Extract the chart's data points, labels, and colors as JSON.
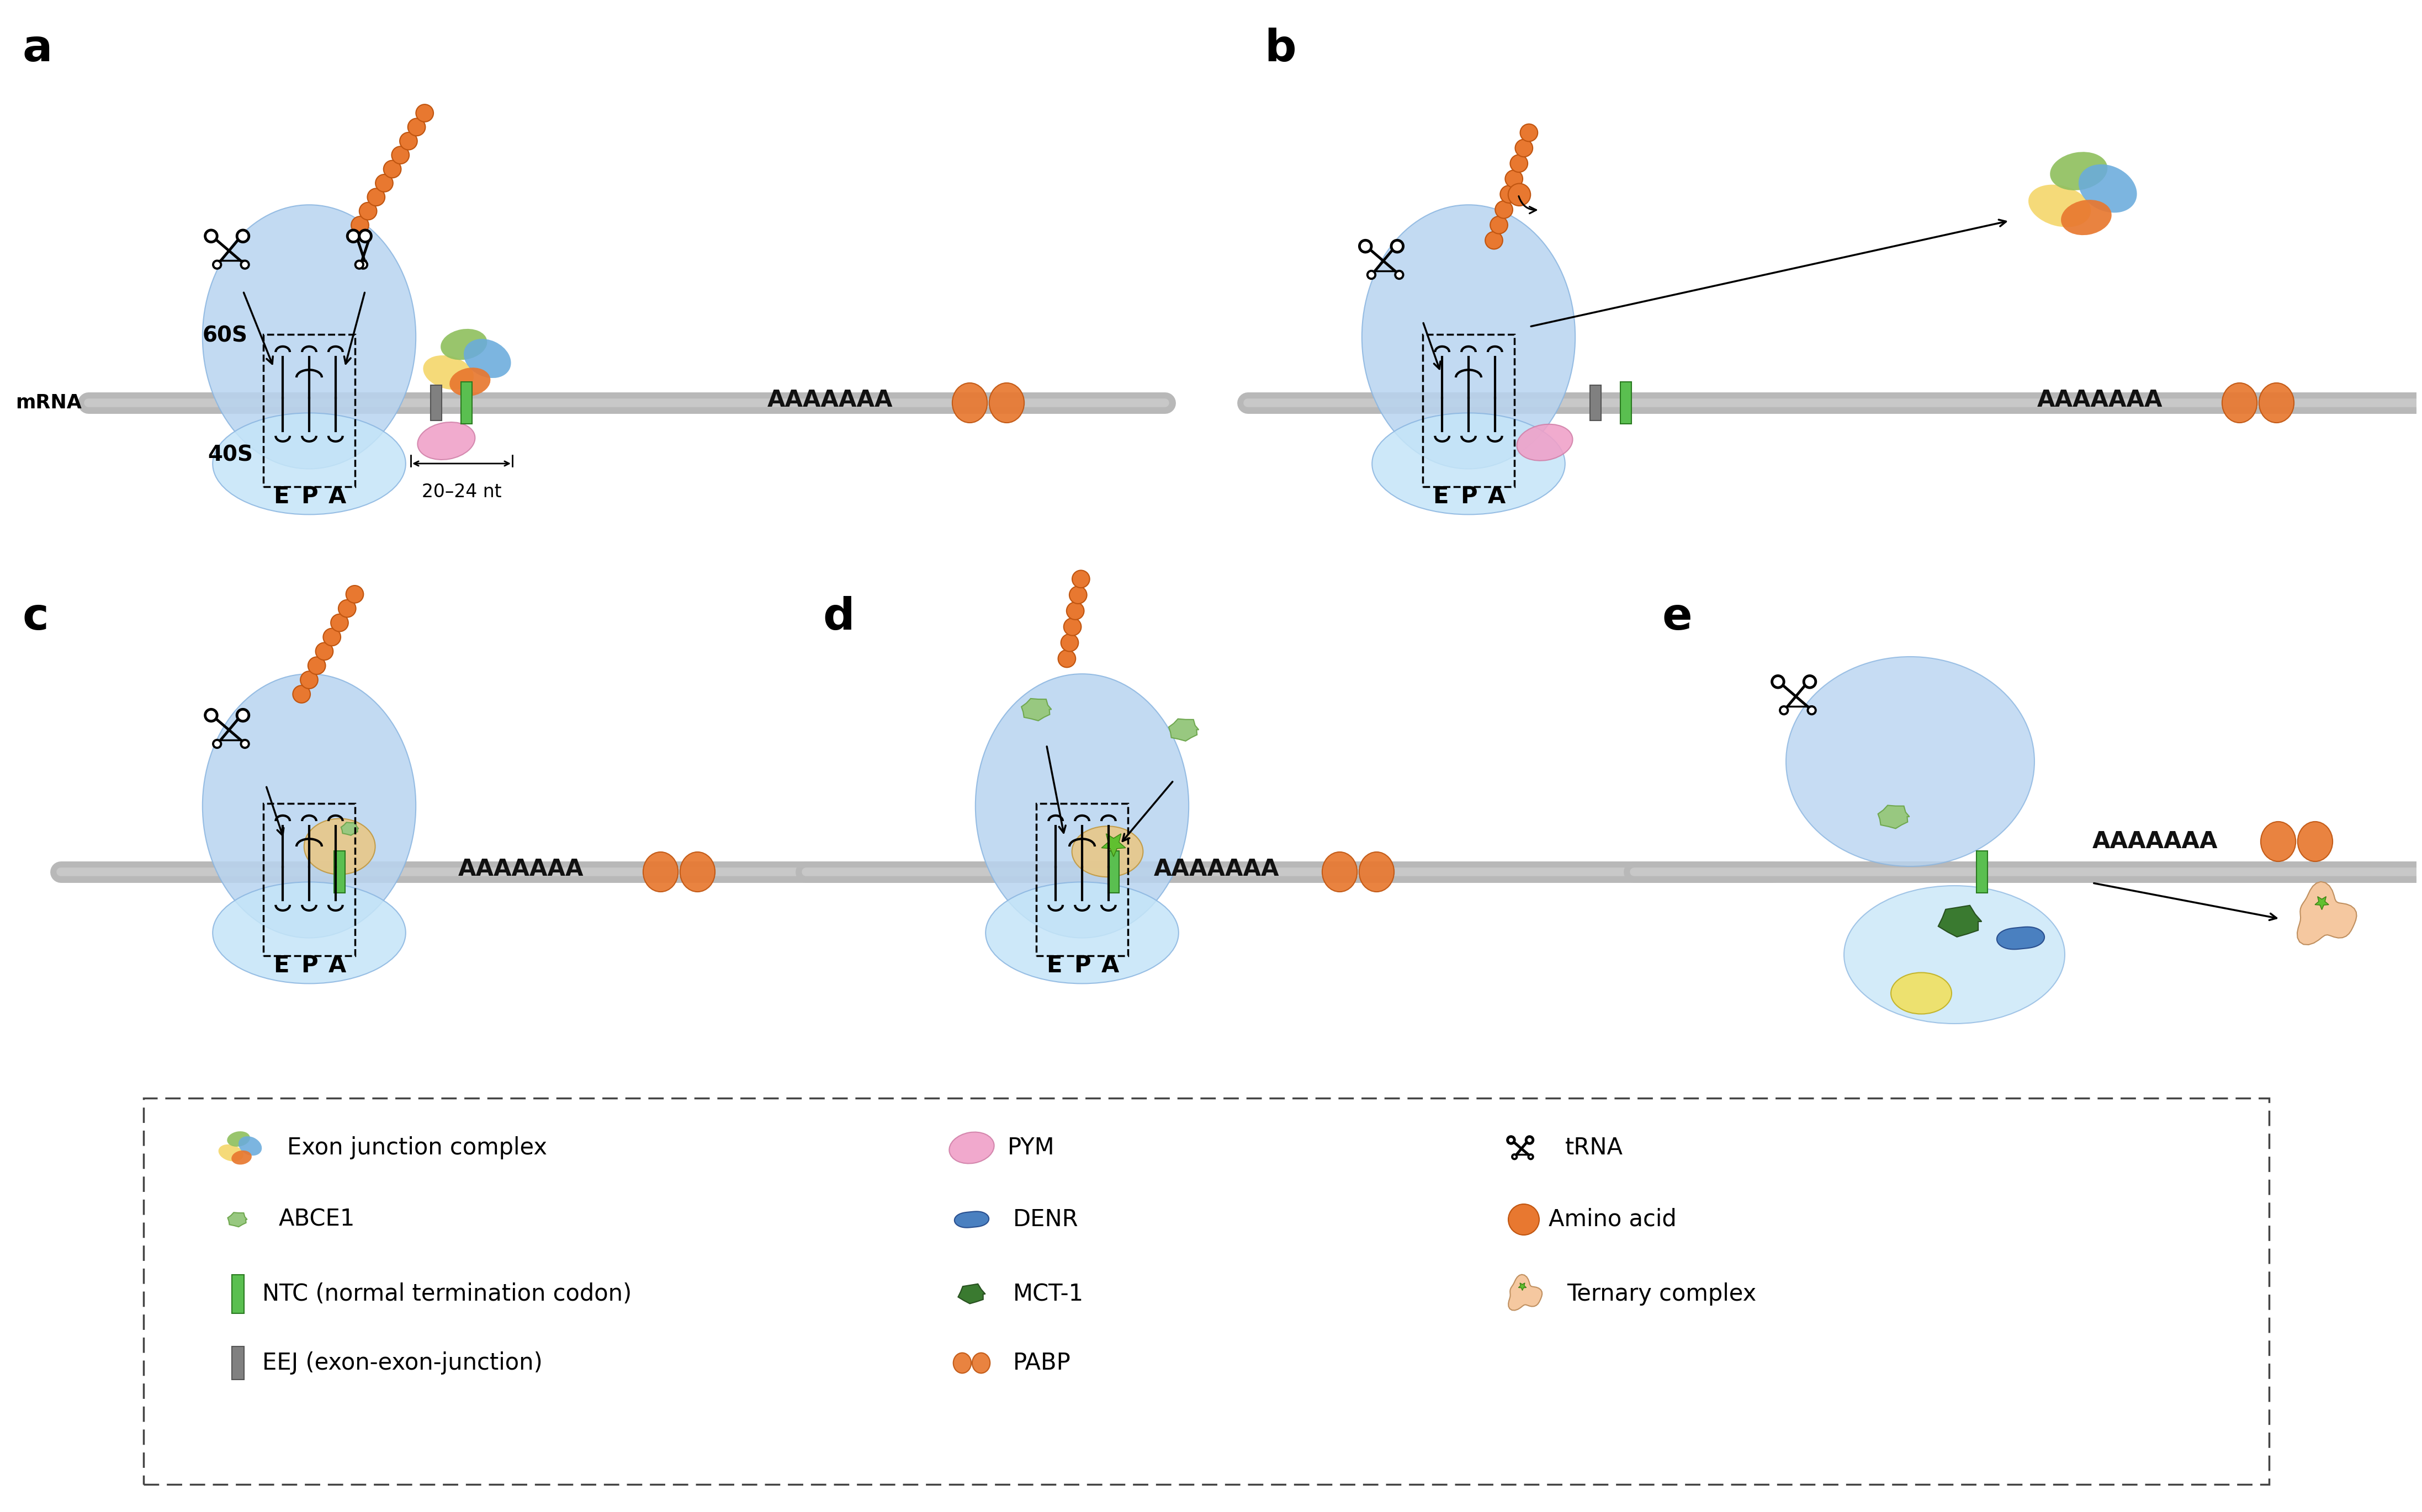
{
  "bg_color": "#ffffff",
  "ribo_upper_color": "#b8d4f0",
  "ribo_upper_edge": "#8ab5e0",
  "ribo_lower_color": "#c5e5f8",
  "ribo_lower_edge": "#8ab5e0",
  "mRNA_color": "#b8b8b8",
  "mRNA_lw": 28,
  "EJC_colors": [
    "#f5d76e",
    "#90c060",
    "#6aabdc",
    "#e87830"
  ],
  "PYM_color": "#f0a0c8",
  "ABCE1_color": "#98c880",
  "NTC_color": "#5abf50",
  "EEJ_color": "#808080",
  "aa_color": "#e87830",
  "aa_edge": "#c05510",
  "PABP_color": "#e87830",
  "MCT1_color": "#3a7a30",
  "DENR_color": "#4a80c0",
  "ternary_color": "#f5c8a0",
  "ternary_edge": "#c09060",
  "star_color": "#60c030",
  "AAAA_color": "#111111",
  "label_fs": 58,
  "EPA_fs": 30,
  "text_fs": 28,
  "legend_fs": 30
}
